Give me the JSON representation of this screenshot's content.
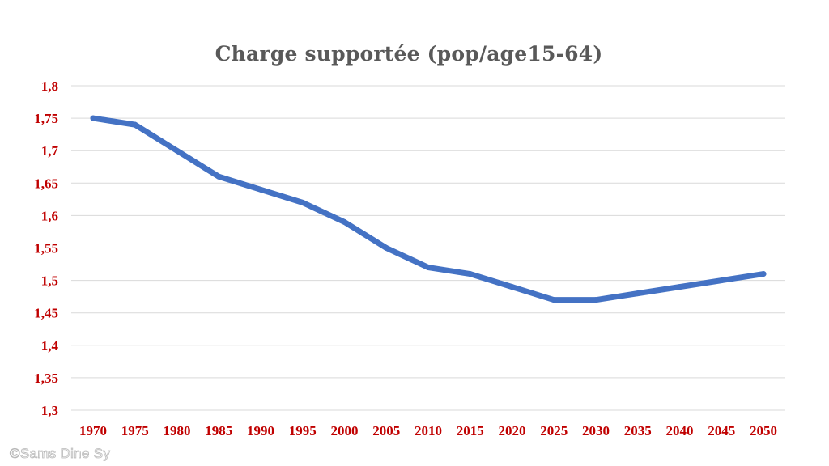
{
  "chart_data": {
    "type": "line",
    "title": "Charge supportée (pop/age15-64)",
    "xlabel": "",
    "ylabel": "",
    "categories": [
      "1970",
      "1975",
      "1980",
      "1985",
      "1990",
      "1995",
      "2000",
      "2005",
      "2010",
      "2015",
      "2020",
      "2025",
      "2030",
      "2035",
      "2040",
      "2045",
      "2050"
    ],
    "series": [
      {
        "values": [
          1.75,
          1.74,
          1.7,
          1.66,
          1.64,
          1.62,
          1.59,
          1.55,
          1.52,
          1.51,
          1.49,
          1.47,
          1.47,
          1.48,
          1.49,
          1.5,
          1.51
        ],
        "color": "#4472c4"
      }
    ],
    "ylim": [
      1.3,
      1.8
    ],
    "yticks": [
      "1,3",
      "1,35",
      "1,4",
      "1,45",
      "1,5",
      "1,55",
      "1,6",
      "1,65",
      "1,7",
      "1,75",
      "1,8"
    ],
    "grid": true,
    "legend": "none",
    "tick_color": "#c00000",
    "grid_color": "#d9d9d9"
  },
  "watermark": "©Sams Dine Sy"
}
